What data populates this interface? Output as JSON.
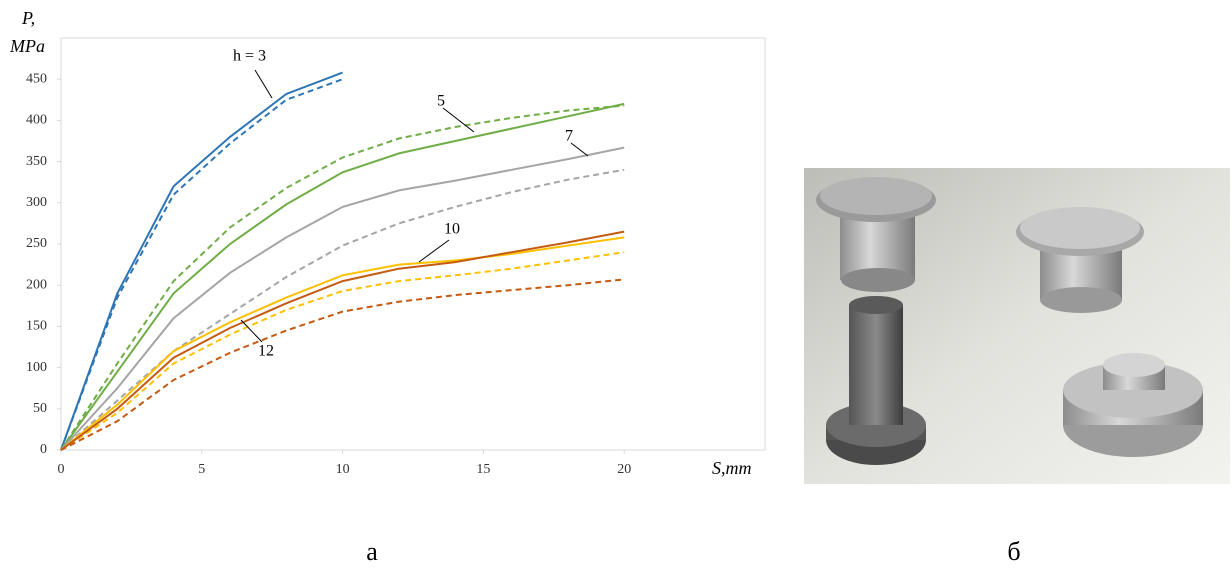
{
  "chart_data": {
    "type": "line",
    "ylabel": [
      "P,",
      "MPa"
    ],
    "xlabel": "S,mm",
    "x": [
      0,
      2,
      4,
      6,
      8,
      10,
      12,
      14,
      16,
      18,
      20
    ],
    "xlim": [
      0,
      25
    ],
    "ylim": [
      0,
      500
    ],
    "xticks": [
      0,
      5,
      10,
      15,
      20
    ],
    "yticks": [
      0,
      50,
      100,
      150,
      200,
      250,
      300,
      350,
      400,
      450
    ],
    "grid": false,
    "annotations": [
      "h = 3",
      "5",
      "7",
      "10",
      "12"
    ],
    "series": [
      {
        "color": "#2e75b6",
        "dash": false,
        "values": [
          0,
          190,
          320,
          380,
          432,
          458,
          null,
          null,
          null,
          null,
          null
        ]
      },
      {
        "color": "#2e75b6",
        "dash": true,
        "values": [
          0,
          185,
          310,
          372,
          425,
          450,
          null,
          null,
          null,
          null,
          null
        ]
      },
      {
        "color": "#70ad47",
        "dash": false,
        "values": [
          0,
          95,
          190,
          250,
          298,
          337,
          360,
          375,
          390,
          405,
          420
        ]
      },
      {
        "color": "#70ad47",
        "dash": true,
        "values": [
          0,
          105,
          205,
          270,
          318,
          355,
          378,
          392,
          403,
          412,
          418
        ]
      },
      {
        "color": "#a5a5a5",
        "dash": false,
        "values": [
          0,
          75,
          160,
          215,
          258,
          295,
          315,
          327,
          340,
          353,
          367
        ]
      },
      {
        "color": "#a5a5a5",
        "dash": true,
        "values": [
          0,
          60,
          120,
          165,
          210,
          248,
          275,
          295,
          313,
          328,
          340
        ]
      },
      {
        "color": "#ffc000",
        "dash": false,
        "values": [
          0,
          55,
          120,
          155,
          185,
          212,
          225,
          230,
          238,
          248,
          258
        ]
      },
      {
        "color": "#ffc000",
        "dash": true,
        "values": [
          0,
          45,
          105,
          140,
          170,
          193,
          205,
          212,
          220,
          230,
          240
        ]
      },
      {
        "color": "#c55a11",
        "dash": false,
        "values": [
          0,
          50,
          112,
          148,
          178,
          205,
          220,
          228,
          240,
          252,
          265
        ]
      },
      {
        "color": "#c55a11",
        "dash": true,
        "values": [
          0,
          35,
          85,
          118,
          145,
          168,
          180,
          188,
          194,
          200,
          207
        ]
      }
    ]
  },
  "panel_labels": [
    "а",
    "б"
  ]
}
